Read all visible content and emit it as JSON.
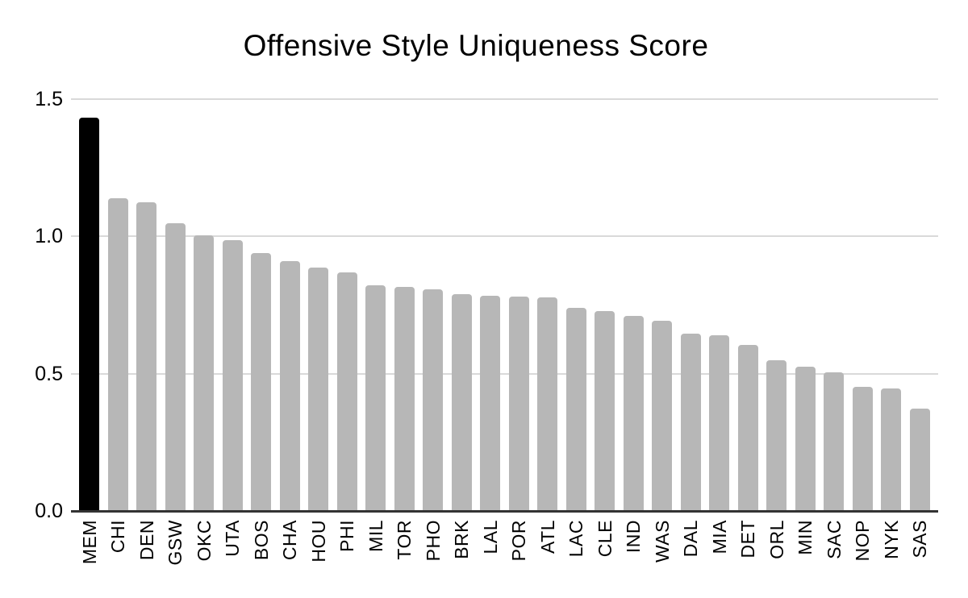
{
  "chart_data": {
    "type": "bar",
    "title": "Offensive Style Uniqueness Score",
    "categories": [
      "MEM",
      "CHI",
      "DEN",
      "GSW",
      "OKC",
      "UTA",
      "BOS",
      "CHA",
      "HOU",
      "PHI",
      "MIL",
      "TOR",
      "PHO",
      "BRK",
      "LAL",
      "POR",
      "ATL",
      "LAC",
      "CLE",
      "IND",
      "WAS",
      "DAL",
      "MIA",
      "DET",
      "ORL",
      "MIN",
      "SAC",
      "NOP",
      "NYK",
      "SAS"
    ],
    "values": [
      1.433,
      1.14,
      1.125,
      1.048,
      1.005,
      0.987,
      0.94,
      0.911,
      0.887,
      0.868,
      0.822,
      0.815,
      0.808,
      0.791,
      0.785,
      0.78,
      0.777,
      0.741,
      0.727,
      0.711,
      0.693,
      0.646,
      0.64,
      0.604,
      0.55,
      0.526,
      0.506,
      0.451,
      0.445,
      0.374
    ],
    "highlight_category": "MEM",
    "xlabel": "",
    "ylabel": "",
    "ylim": [
      0,
      1.5
    ],
    "ytick_labels": [
      "0.0",
      "0.5",
      "1.0",
      "1.5"
    ],
    "ytick_values": [
      0,
      0.5,
      1.0,
      1.5
    ],
    "grid": "horizontal",
    "legend": "none",
    "bar_orientation": "vertical",
    "xtick_rotation_degrees": 90,
    "colors": {
      "bar": "#b7b7b7",
      "highlight": "#000000",
      "gridline": "#d9d9d9",
      "axis": "#333333",
      "text": "#000000",
      "background": "#ffffff"
    }
  }
}
